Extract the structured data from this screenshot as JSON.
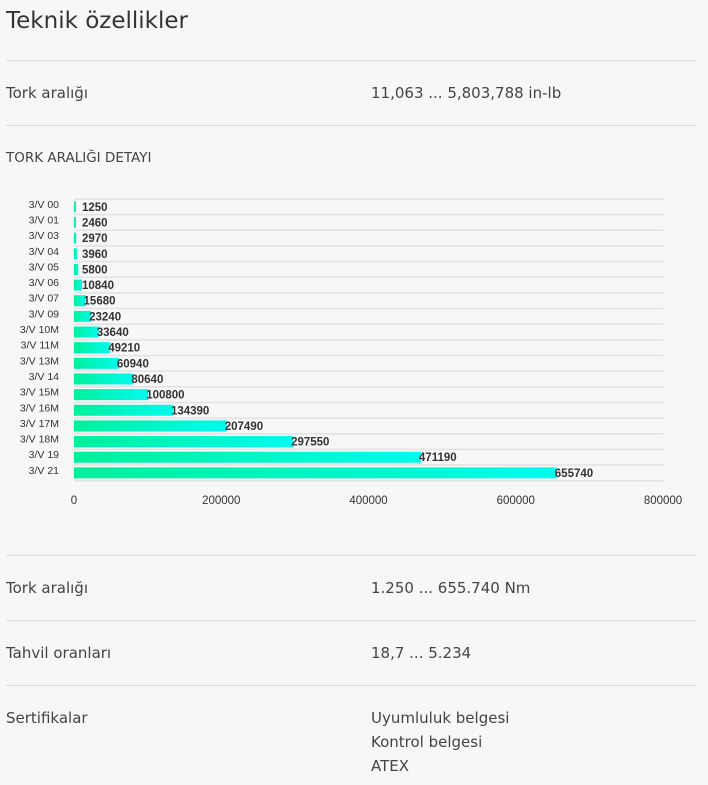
{
  "title": "Teknik özellikler",
  "rows_top": [
    {
      "label": "Tork aralığı",
      "value": "11,063 ... 5,803,788 in-lb"
    }
  ],
  "section_title": "TORK ARALIĞI DETAYI",
  "chart_data": {
    "type": "bar",
    "orientation": "horizontal",
    "categories": [
      "3/V 00",
      "3/V 01",
      "3/V 03",
      "3/V 04",
      "3/V 05",
      "3/V 06",
      "3/V 07",
      "3/V 09",
      "3/V 10M",
      "3/V 11M",
      "3/V 13M",
      "3/V 14",
      "3/V 15M",
      "3/V 16M",
      "3/V 17M",
      "3/V 18M",
      "3/V 19",
      "3/V 21"
    ],
    "values": [
      1250,
      2460,
      2970,
      3960,
      5800,
      10840,
      15680,
      23240,
      33640,
      49210,
      60940,
      80640,
      100800,
      134390,
      207490,
      297550,
      471190,
      655740
    ],
    "xlim": [
      0,
      800000
    ],
    "xticks": [
      "0",
      "200000",
      "400000",
      "600000",
      "800000"
    ],
    "colors": {
      "start": "#00f09a",
      "end": "#00fbee",
      "label": "#333333"
    }
  },
  "rows_bottom": [
    {
      "label": "Tork aralığı",
      "value": "1.250 ... 655.740 Nm"
    },
    {
      "label": "Tahvil oranları",
      "value": "18,7 ... 5.234"
    }
  ],
  "certificates": {
    "label": "Sertifikalar",
    "values": [
      "Uyumluluk belgesi",
      "Kontrol belgesi",
      "ATEX"
    ]
  }
}
